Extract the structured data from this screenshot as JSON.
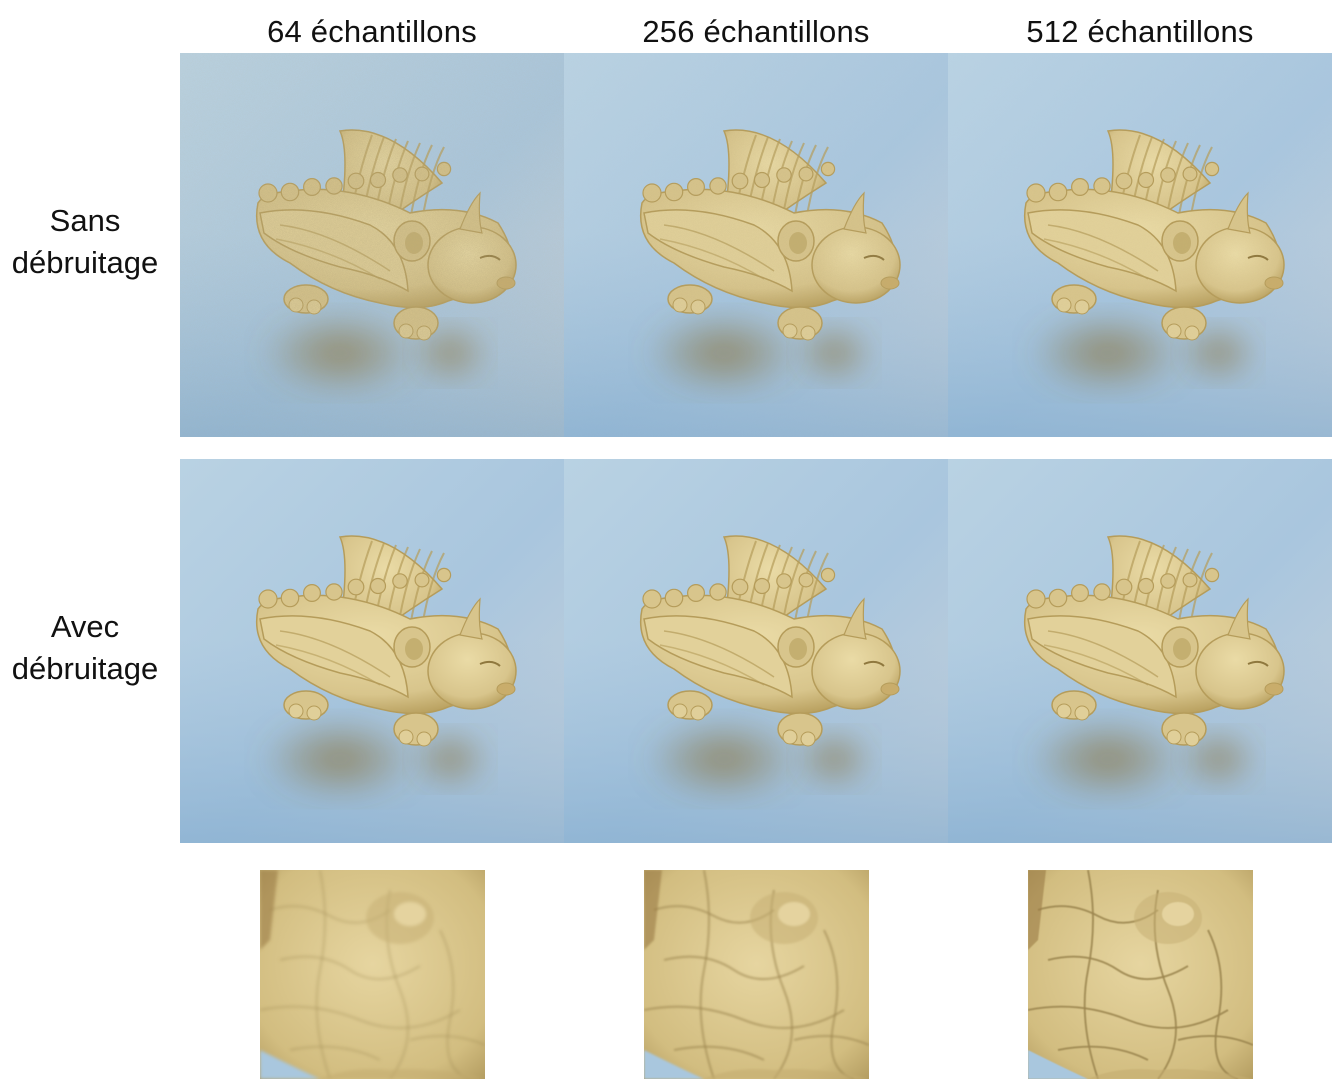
{
  "columns": [
    {
      "label": "64 échantillons"
    },
    {
      "label": "256 échantillons"
    },
    {
      "label": "512 échantillons"
    }
  ],
  "rows": [
    {
      "label_line1": "Sans",
      "label_line2": "débruitage"
    },
    {
      "label_line1": "Avec",
      "label_line2": "débruitage"
    }
  ],
  "colors": {
    "background_light": "#b9d2e3",
    "background_dark": "#86aed0",
    "sand": "#d8c58c",
    "sand_shadow": "#b59c5a"
  }
}
